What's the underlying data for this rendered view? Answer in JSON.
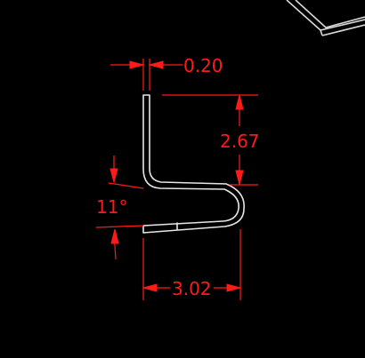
{
  "drawing": {
    "type": "CAD profile drawing",
    "background_color": "#000000",
    "part_color": "#e6e6e6",
    "dimension_color": "#ff1a1a",
    "dimensions": {
      "thickness": "0.20",
      "height": "2.67",
      "angle": "11°",
      "width": "3.02"
    }
  }
}
